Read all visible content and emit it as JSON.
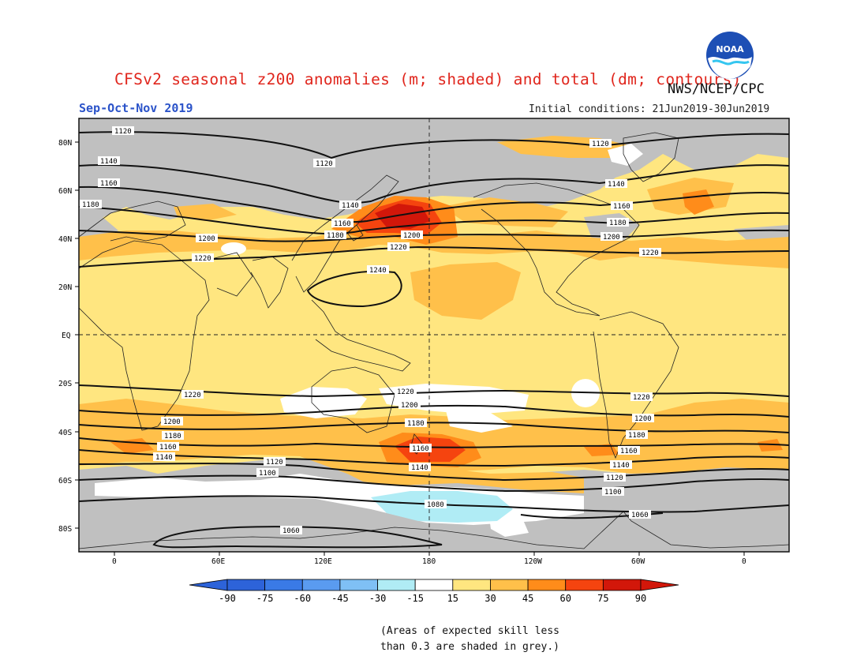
{
  "header": {
    "title": "CFSv2 seasonal z200 anomalies (m; shaded) and total (dm; contours)",
    "agency": "NWS/NCEP/CPC",
    "period": "Sep-Oct-Nov 2019",
    "initial_conditions": "Initial conditions: 21Jun2019-30Jun2019"
  },
  "logo": {
    "text": "NOAA",
    "icon": "noaa-logo-icon"
  },
  "map": {
    "lat_ticks": [
      "80N",
      "60N",
      "40N",
      "20N",
      "EQ",
      "20S",
      "40S",
      "60S",
      "80S"
    ],
    "lon_ticks": [
      "0",
      "60E",
      "120E",
      "180",
      "120W",
      "60W",
      "0"
    ],
    "contour_labels": {
      "c1120_a": "1120",
      "c1120_b": "1120",
      "c1120_c": "1120",
      "c1140_a": "1140",
      "c1140_b": "1140",
      "c1140_c": "1140",
      "c1160_a": "1160",
      "c1160_b": "1160",
      "c1160_c": "1160",
      "c1180_a": "1180",
      "c1180_b": "1180",
      "c1180_c": "1180",
      "c1200_a": "1200",
      "c1200_b": "1200",
      "c1200_c": "1200",
      "c1220_a": "1220",
      "c1220_b": "1220",
      "c1220_c": "1220",
      "c1240": "1240",
      "s1220_a": "1220",
      "s1220_b": "1220",
      "s1200_a": "1200",
      "s1200_b": "1200",
      "s1200_c": "1200",
      "s1180_a": "1180",
      "s1180_b": "1180",
      "s1180_c": "1180",
      "s1160_a": "1160",
      "s1160_b": "1160",
      "s1160_c": "1160",
      "s1140_a": "1140",
      "s1140_b": "1140",
      "s1140_c": "1140",
      "s1120_a": "1120",
      "s1120_b": "1120",
      "s1100_a": "1100",
      "s1100_b": "1100",
      "s1080": "1080",
      "s1060_a": "1060",
      "s1060_b": "1060"
    },
    "colors": {
      "grey_low_skill": "#c0c0c0",
      "ocean_white": "#ffffff",
      "light_yellow": "#ffe680",
      "orange_30_45": "#ffc04a",
      "orange_45_60": "#ff8c1a",
      "red_60_75": "#f5440f",
      "dark_red_75_90": "#d2170a",
      "light_cyan": "#b0ecf5"
    }
  },
  "colorbar": {
    "labels": [
      "-90",
      "-75",
      "-60",
      "-45",
      "-30",
      "-15",
      "15",
      "30",
      "45",
      "60",
      "75",
      "90"
    ],
    "colors": [
      "#2d63d9",
      "#3a7ae6",
      "#5a9bf0",
      "#7fc0f5",
      "#b0ecf5",
      "#ffffff",
      "#ffe680",
      "#ffc04a",
      "#ff8c1a",
      "#f5440f",
      "#d2170a"
    ]
  },
  "notes": {
    "line1": "(Areas of expected skill less",
    "line2": "than 0.3 are shaded in grey.)"
  }
}
